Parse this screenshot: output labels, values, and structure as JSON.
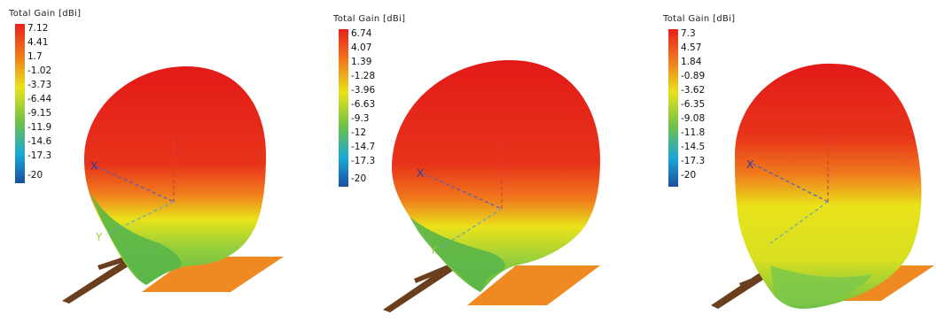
{
  "panels": [
    {
      "title": "Total Gain [dBi]",
      "ticks": [
        "7.12",
        "4.41",
        "1.7",
        "-1.02",
        "-3.73",
        "-6.44",
        "-9.15",
        "-11.9",
        "-14.6",
        "-17.3",
        "-20"
      ],
      "x_axis_label": "X",
      "y_axis_label": "Y"
    },
    {
      "title": "Total Gain [dBi]",
      "ticks": [
        "6.74",
        "4.07",
        "1.39",
        "-1.28",
        "-3.96",
        "-6.63",
        "-9.3",
        "-12",
        "-14.7",
        "-17.3",
        "-20"
      ],
      "x_axis_label": "X",
      "y_axis_label": "Y"
    },
    {
      "title": "Total Gain [dBi]",
      "ticks": [
        "7.3",
        "4.57",
        "1.84",
        "-0.89",
        "-3.62",
        "-6.35",
        "-9.08",
        "-11.8",
        "-14.5",
        "-17.3",
        "-20"
      ],
      "x_axis_label": "X"
    }
  ],
  "colors": {
    "max": "#e8201c",
    "orange": "#f07a1c",
    "yellow": "#e9e21a",
    "green": "#6cc04a",
    "cyan": "#1aa7d8",
    "min": "#1a4fa0",
    "antenna_board": "#ef8a22",
    "antenna_feed": "#6b3f1e",
    "axis_line": "#4a5ccc"
  }
}
